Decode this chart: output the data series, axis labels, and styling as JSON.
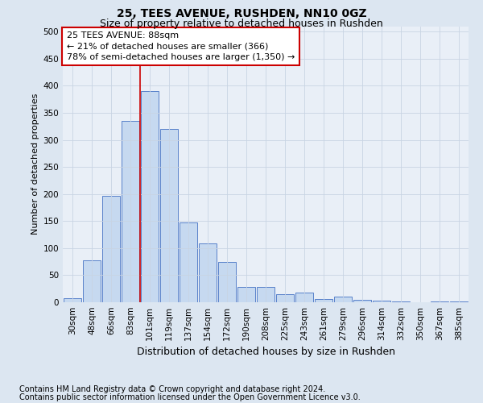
{
  "title": "25, TEES AVENUE, RUSHDEN, NN10 0GZ",
  "subtitle": "Size of property relative to detached houses in Rushden",
  "xlabel": "Distribution of detached houses by size in Rushden",
  "ylabel": "Number of detached properties",
  "footer_line1": "Contains HM Land Registry data © Crown copyright and database right 2024.",
  "footer_line2": "Contains public sector information licensed under the Open Government Licence v3.0.",
  "categories": [
    "30sqm",
    "48sqm",
    "66sqm",
    "83sqm",
    "101sqm",
    "119sqm",
    "137sqm",
    "154sqm",
    "172sqm",
    "190sqm",
    "208sqm",
    "225sqm",
    "243sqm",
    "261sqm",
    "279sqm",
    "296sqm",
    "314sqm",
    "332sqm",
    "350sqm",
    "367sqm",
    "385sqm"
  ],
  "values": [
    7,
    78,
    197,
    335,
    390,
    320,
    148,
    108,
    75,
    28,
    28,
    15,
    18,
    6,
    11,
    4,
    3,
    1,
    0,
    2,
    1
  ],
  "bar_color": "#c6d9f0",
  "bar_edge_color": "#4472c4",
  "vline_color": "#cc0000",
  "annotation_text": "25 TEES AVENUE: 88sqm\n← 21% of detached houses are smaller (366)\n78% of semi-detached houses are larger (1,350) →",
  "annotation_box_color": "#ffffff",
  "annotation_box_edge_color": "#cc0000",
  "ylim": [
    0,
    510
  ],
  "yticks": [
    0,
    50,
    100,
    150,
    200,
    250,
    300,
    350,
    400,
    450,
    500
  ],
  "bg_color": "#dce6f1",
  "plot_bg_color": "#e9eff7",
  "title_fontsize": 10,
  "subtitle_fontsize": 9,
  "axis_label_fontsize": 9,
  "ylabel_fontsize": 8,
  "tick_fontsize": 7.5,
  "annotation_fontsize": 8,
  "footer_fontsize": 7
}
